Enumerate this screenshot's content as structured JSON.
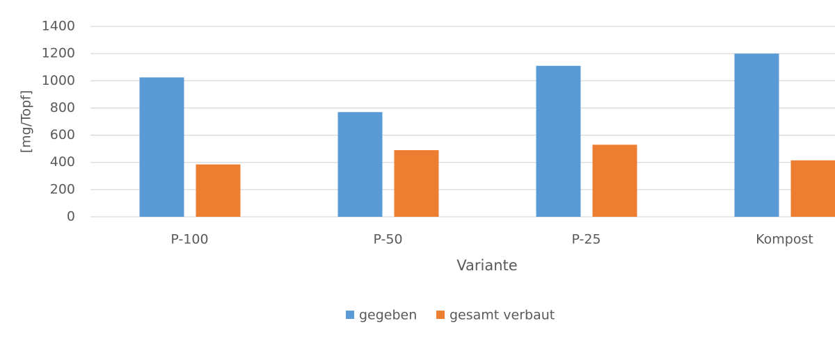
{
  "chart_data": {
    "type": "bar",
    "x_label": "Variante",
    "y_label": "[mg/Topf]",
    "categories": [
      "P-100",
      "P-50",
      "P-25",
      "Kompost"
    ],
    "series": [
      {
        "name": "gegeben",
        "color": "#5b9bd5",
        "values": [
          1025,
          770,
          1110,
          1200
        ]
      },
      {
        "name": "gesamt verbaut",
        "color": "#ed7d31",
        "values": [
          385,
          490,
          530,
          415
        ]
      }
    ],
    "ylim": [
      0,
      1400
    ],
    "yticks": [
      0,
      200,
      400,
      600,
      800,
      1000,
      1200,
      1400
    ],
    "grid": true,
    "legend": "bottom"
  }
}
